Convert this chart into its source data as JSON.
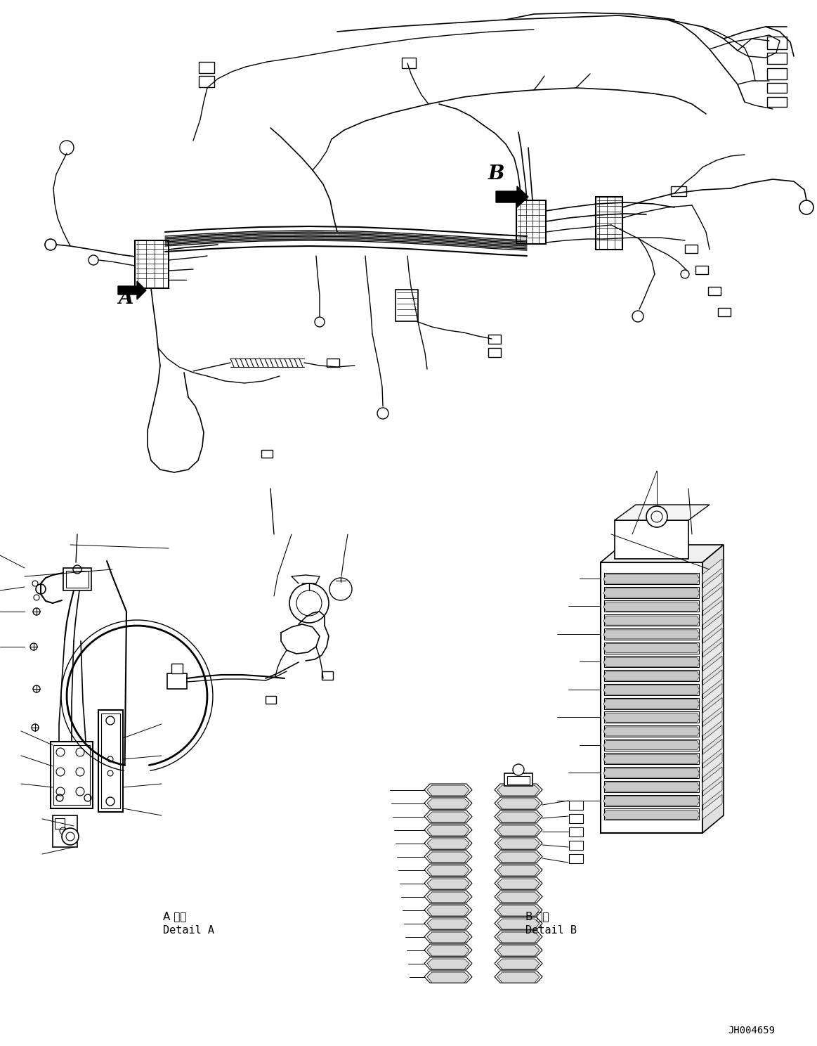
{
  "background_color": "#ffffff",
  "line_color": "#000000",
  "figure_width": 11.63,
  "figure_height": 14.88,
  "dpi": 100,
  "label_A": "A",
  "label_B": "B",
  "label_detail_A_jp": "A 詳細",
  "label_detail_A_en": "Detail A",
  "label_detail_B_jp": "B 詳細",
  "label_detail_B_en": "Detail B",
  "doc_number": "JH004659"
}
